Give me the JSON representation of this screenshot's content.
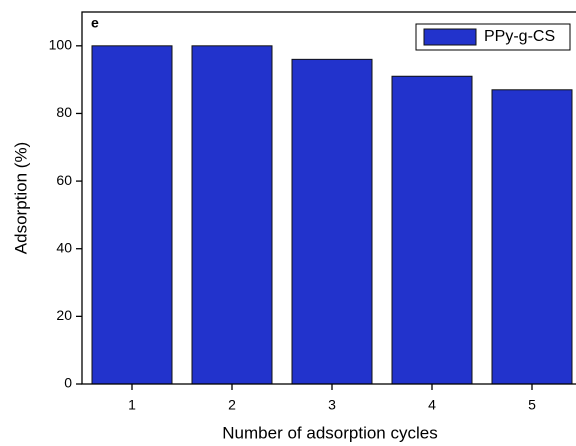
{
  "chart_data": {
    "type": "bar",
    "panel_label": "e",
    "xlabel": "Number of adsorption cycles",
    "ylabel": "Adsorption (%)",
    "categories": [
      "1",
      "2",
      "3",
      "4",
      "5"
    ],
    "series": [
      {
        "name": "PPy-g-CS",
        "color": "#2233cc",
        "values": [
          100,
          100,
          96,
          91,
          87
        ]
      }
    ],
    "ylim": [
      0,
      110
    ],
    "yticks": [
      0,
      20,
      40,
      60,
      80,
      100
    ],
    "legend": "upper right"
  }
}
